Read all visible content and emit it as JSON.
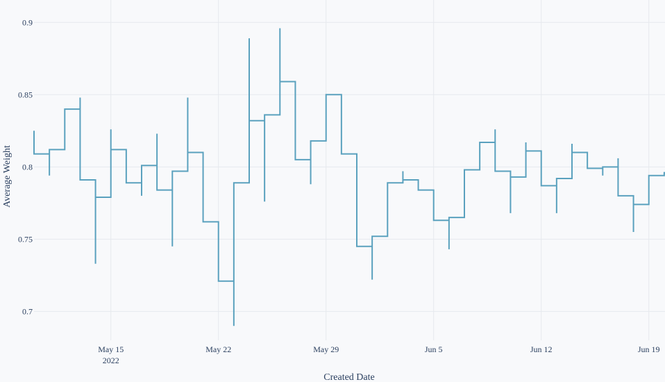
{
  "chart_data": {
    "type": "line",
    "line_shape": "step",
    "title": "",
    "xlabel": "Created Date",
    "ylabel": "Average Weight",
    "ylim": [
      0.68,
      0.9155
    ],
    "xlim": [
      "2022-05-10",
      "2022-06-20"
    ],
    "grid": true,
    "line_color": "#5aa1be",
    "y_ticks": [
      0.7,
      0.75,
      0.8,
      0.85,
      0.9
    ],
    "y_tick_labels": [
      "0.7",
      "0.75",
      "0.8",
      "0.85",
      "0.9"
    ],
    "x_ticks": [
      {
        "date": "2022-05-15",
        "label": "May 15",
        "sub": "2022"
      },
      {
        "date": "2022-05-22",
        "label": "May 22",
        "sub": ""
      },
      {
        "date": "2022-05-29",
        "label": "May 29",
        "sub": ""
      },
      {
        "date": "2022-06-05",
        "label": "Jun 5",
        "sub": ""
      },
      {
        "date": "2022-06-12",
        "label": "Jun 12",
        "sub": ""
      },
      {
        "date": "2022-06-19",
        "label": "Jun 19",
        "sub": ""
      }
    ],
    "points": [
      {
        "date": "2022-05-10",
        "value": 0.809,
        "spike": 0.825
      },
      {
        "date": "2022-05-11",
        "value": 0.812,
        "spike": 0.794
      },
      {
        "date": "2022-05-12",
        "value": 0.84,
        "spike": null
      },
      {
        "date": "2022-05-13",
        "value": 0.791,
        "spike": 0.848
      },
      {
        "date": "2022-05-14",
        "value": 0.779,
        "spike": 0.733
      },
      {
        "date": "2022-05-15",
        "value": 0.812,
        "spike": 0.826
      },
      {
        "date": "2022-05-16",
        "value": 0.789,
        "spike": null
      },
      {
        "date": "2022-05-17",
        "value": 0.801,
        "spike": 0.78
      },
      {
        "date": "2022-05-18",
        "value": 0.784,
        "spike": 0.823
      },
      {
        "date": "2022-05-19",
        "value": 0.797,
        "spike": 0.745
      },
      {
        "date": "2022-05-20",
        "value": 0.81,
        "spike": 0.848
      },
      {
        "date": "2022-05-21",
        "value": 0.762,
        "spike": null
      },
      {
        "date": "2022-05-22",
        "value": 0.721,
        "spike": null
      },
      {
        "date": "2022-05-23",
        "value": 0.789,
        "spike": 0.69
      },
      {
        "date": "2022-05-24",
        "value": 0.832,
        "spike": 0.889
      },
      {
        "date": "2022-05-25",
        "value": 0.836,
        "spike": 0.776
      },
      {
        "date": "2022-05-26",
        "value": 0.859,
        "spike": 0.896
      },
      {
        "date": "2022-05-27",
        "value": 0.805,
        "spike": null
      },
      {
        "date": "2022-05-28",
        "value": 0.818,
        "spike": 0.788
      },
      {
        "date": "2022-05-29",
        "value": 0.85,
        "spike": null
      },
      {
        "date": "2022-05-30",
        "value": 0.809,
        "spike": null
      },
      {
        "date": "2022-05-31",
        "value": 0.745,
        "spike": null
      },
      {
        "date": "2022-06-01",
        "value": 0.752,
        "spike": 0.722
      },
      {
        "date": "2022-06-02",
        "value": 0.789,
        "spike": null
      },
      {
        "date": "2022-06-03",
        "value": 0.791,
        "spike": 0.797
      },
      {
        "date": "2022-06-04",
        "value": 0.784,
        "spike": null
      },
      {
        "date": "2022-06-05",
        "value": 0.763,
        "spike": null
      },
      {
        "date": "2022-06-06",
        "value": 0.765,
        "spike": 0.743
      },
      {
        "date": "2022-06-07",
        "value": 0.798,
        "spike": null
      },
      {
        "date": "2022-06-08",
        "value": 0.817,
        "spike": null
      },
      {
        "date": "2022-06-09",
        "value": 0.797,
        "spike": 0.826
      },
      {
        "date": "2022-06-10",
        "value": 0.793,
        "spike": 0.768
      },
      {
        "date": "2022-06-11",
        "value": 0.811,
        "spike": 0.817
      },
      {
        "date": "2022-06-12",
        "value": 0.787,
        "spike": null
      },
      {
        "date": "2022-06-13",
        "value": 0.792,
        "spike": 0.768
      },
      {
        "date": "2022-06-14",
        "value": 0.81,
        "spike": 0.816
      },
      {
        "date": "2022-06-15",
        "value": 0.799,
        "spike": null
      },
      {
        "date": "2022-06-16",
        "value": 0.8,
        "spike": 0.794
      },
      {
        "date": "2022-06-17",
        "value": 0.78,
        "spike": 0.806
      },
      {
        "date": "2022-06-18",
        "value": 0.774,
        "spike": 0.755
      },
      {
        "date": "2022-06-19",
        "value": 0.794,
        "spike": null
      },
      {
        "date": "2022-06-20",
        "value": 0.796,
        "spike": null
      }
    ]
  }
}
